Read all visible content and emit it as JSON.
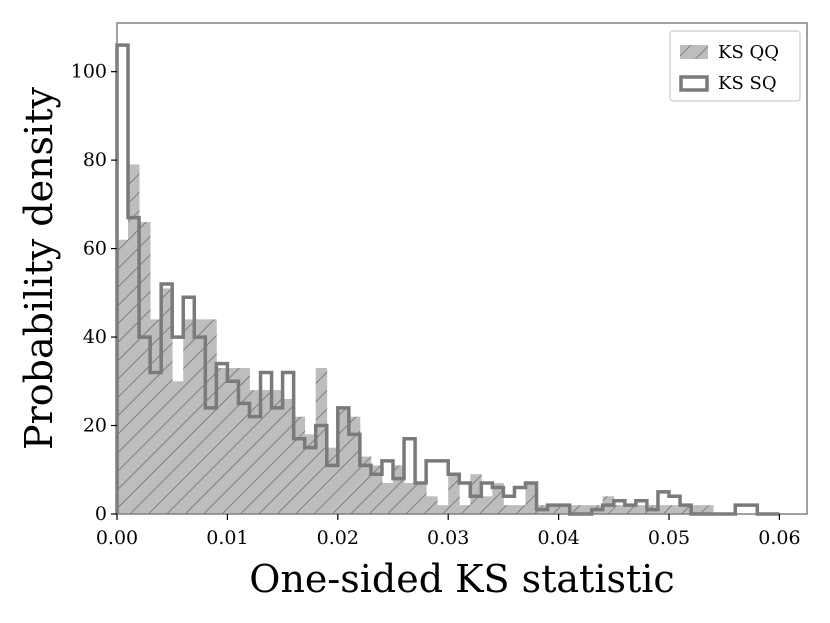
{
  "chart_data": {
    "type": "bar",
    "xlabel": "One-sided KS statistic",
    "ylabel": "Probability density",
    "xlim": [
      0.0,
      0.0625
    ],
    "ylim": [
      0,
      111
    ],
    "grid": false,
    "legend_position": "top-right",
    "x_ticks": [
      "0.00",
      "0.01",
      "0.02",
      "0.03",
      "0.04",
      "0.05",
      "0.06"
    ],
    "y_ticks": [
      "0",
      "20",
      "40",
      "60",
      "80",
      "100"
    ],
    "bin_edges": [
      0.0,
      0.001,
      0.002,
      0.003,
      0.004,
      0.005,
      0.006,
      0.007,
      0.008,
      0.009,
      0.01,
      0.011,
      0.012,
      0.013,
      0.014,
      0.015,
      0.016,
      0.017,
      0.018,
      0.019,
      0.02,
      0.021,
      0.022,
      0.023,
      0.024,
      0.025,
      0.026,
      0.027,
      0.028,
      0.029,
      0.03,
      0.031,
      0.032,
      0.033,
      0.034,
      0.035,
      0.036,
      0.037,
      0.038,
      0.039,
      0.04,
      0.041,
      0.042,
      0.043,
      0.044,
      0.045,
      0.046,
      0.047,
      0.048,
      0.049,
      0.05,
      0.051,
      0.052,
      0.053,
      0.054,
      0.055,
      0.056,
      0.057,
      0.058,
      0.059,
      0.06
    ],
    "series": [
      {
        "name": "KS QQ",
        "style": "hatched",
        "color": "#bdbdbd",
        "values": [
          62,
          79,
          66,
          44,
          51,
          30,
          44,
          44,
          44,
          33,
          33,
          33,
          28,
          28,
          28,
          26,
          22,
          18,
          33,
          15,
          24,
          22,
          13,
          11,
          7,
          11,
          7,
          7,
          4,
          2,
          9,
          2,
          9,
          4,
          7,
          2,
          2,
          7,
          2,
          2,
          2,
          2,
          2,
          2,
          4,
          2,
          2,
          2,
          2,
          2,
          2,
          2,
          2,
          2,
          0,
          0,
          0,
          0,
          0,
          0
        ]
      },
      {
        "name": "KS SQ",
        "style": "step",
        "color": "#7a7a7a",
        "values": [
          106,
          67,
          40,
          32,
          52,
          40,
          49,
          40,
          24,
          34,
          30,
          25,
          22,
          32,
          24,
          32,
          17,
          15,
          20,
          11,
          24,
          18,
          11,
          9,
          12,
          8,
          17,
          7,
          12,
          12,
          9,
          7,
          4,
          7,
          6,
          4,
          6,
          7,
          1,
          2,
          2,
          0,
          0,
          1,
          2,
          3,
          2,
          3,
          1,
          5,
          4,
          2,
          0,
          0,
          0,
          0,
          2,
          2,
          0,
          0
        ]
      }
    ]
  }
}
